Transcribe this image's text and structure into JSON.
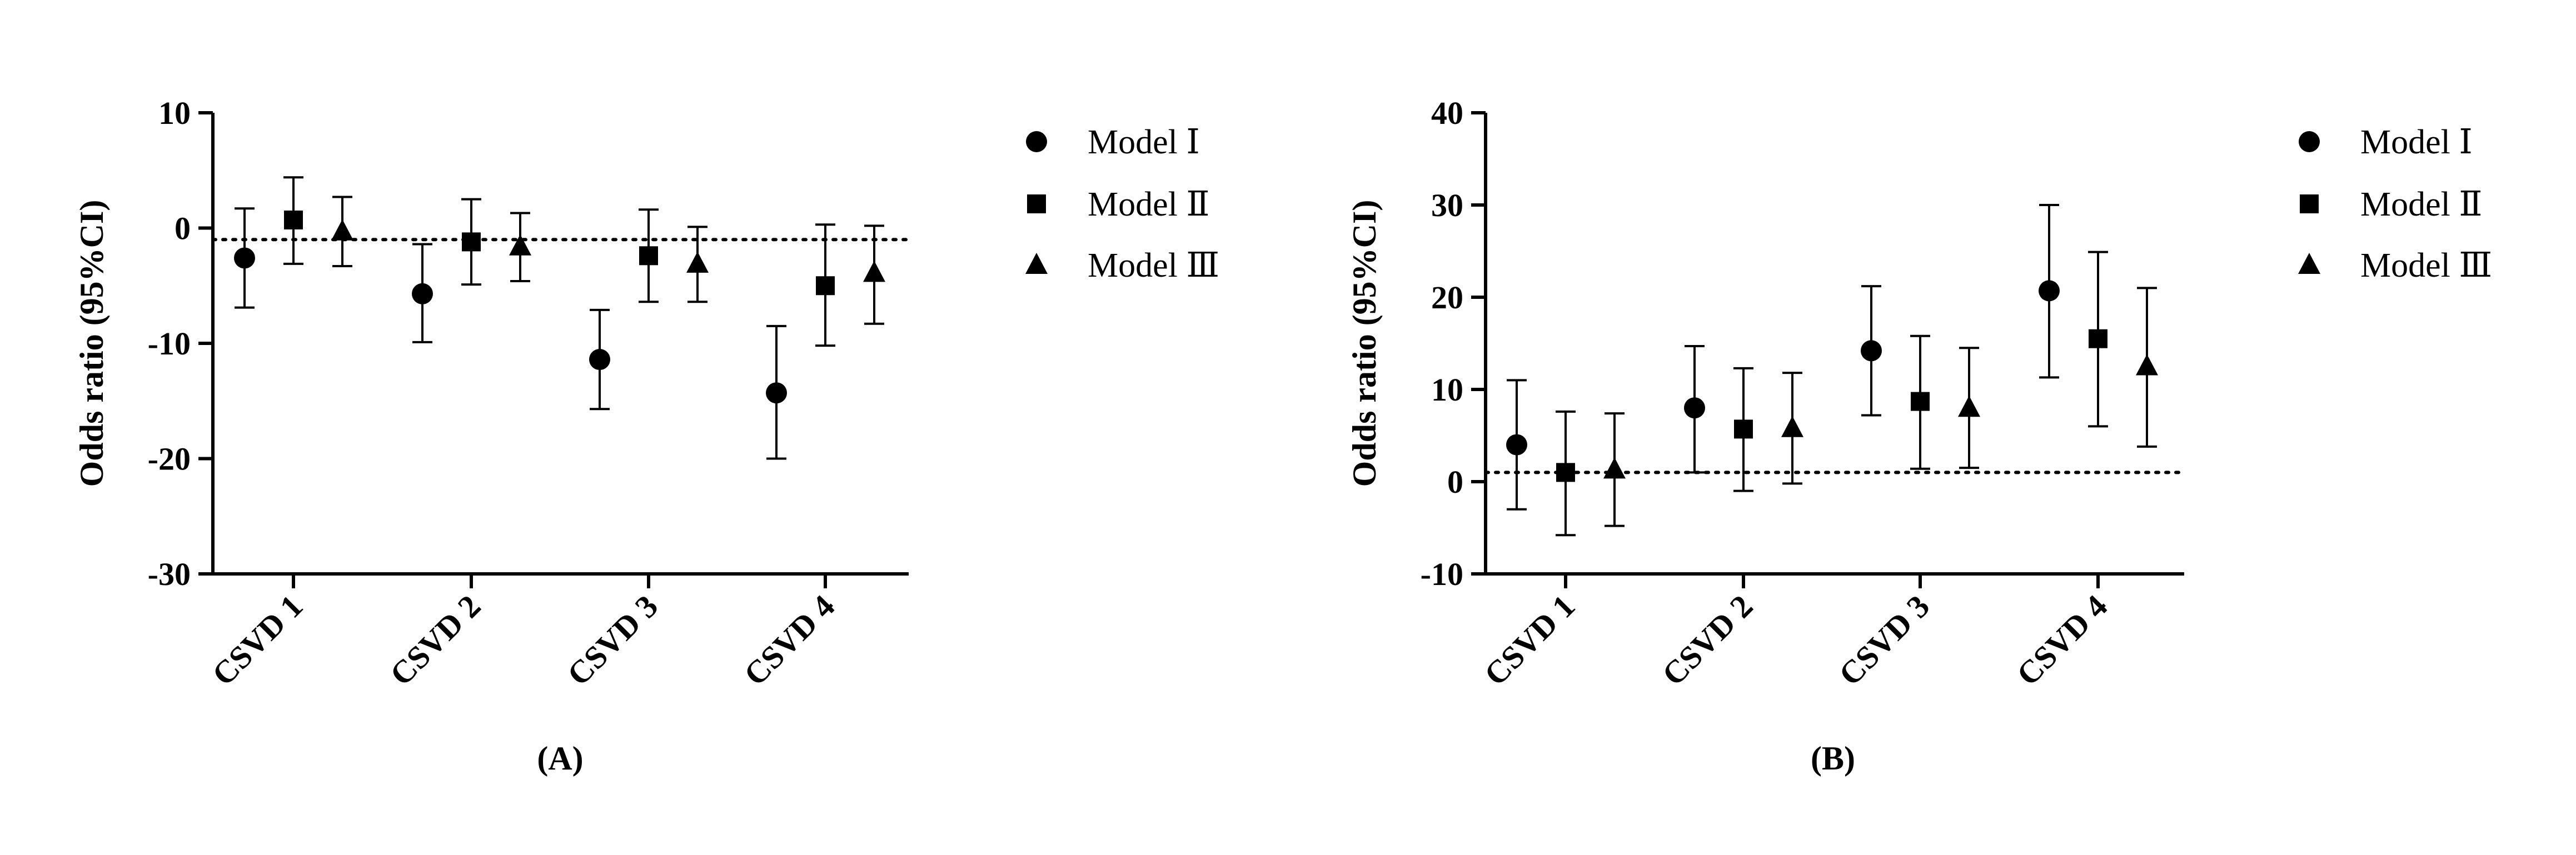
{
  "chart_data": [
    {
      "type": "scatter",
      "panel_label": "(A)",
      "ylabel": "Odds ratio (95%CI)",
      "xlabel": "",
      "ylim": [
        -30,
        10
      ],
      "yticks": [
        10,
        0,
        -10,
        -20,
        -30
      ],
      "ytick_labels": [
        "10",
        "0",
        "-10",
        "-20",
        "-30"
      ],
      "categories": [
        "CSVD 1",
        "CSVD 2",
        "CSVD 3",
        "CSVD 4"
      ],
      "reference_line": -1,
      "grid": false,
      "legend_position": "right",
      "series": [
        {
          "name": "Model Ⅰ",
          "marker": "circle",
          "values": [
            -2.6,
            -5.7,
            -11.4,
            -14.3
          ],
          "lower": [
            -6.9,
            -9.9,
            -15.7,
            -20.0
          ],
          "upper": [
            1.7,
            -1.4,
            -7.1,
            -8.5
          ]
        },
        {
          "name": "Model Ⅱ",
          "marker": "square",
          "values": [
            0.7,
            -1.2,
            -2.4,
            -5.0
          ],
          "lower": [
            -3.1,
            -4.9,
            -6.4,
            -10.2
          ],
          "upper": [
            4.4,
            2.5,
            1.6,
            0.3
          ]
        },
        {
          "name": "Model Ⅲ",
          "marker": "triangle",
          "values": [
            -0.3,
            -1.6,
            -3.1,
            -3.9
          ],
          "lower": [
            -3.3,
            -4.6,
            -6.4,
            -8.3
          ],
          "upper": [
            2.7,
            1.3,
            0.1,
            0.2
          ]
        }
      ]
    },
    {
      "type": "scatter",
      "panel_label": "(B)",
      "ylabel": "Odds ratio (95%CI)",
      "xlabel": "",
      "ylim": [
        -10,
        40
      ],
      "yticks": [
        40,
        30,
        20,
        10,
        0,
        -10
      ],
      "ytick_labels": [
        "40",
        "30",
        "20",
        "10",
        "0",
        "-10"
      ],
      "categories": [
        "CSVD 1",
        "CSVD 2",
        "CSVD 3",
        "CSVD 4"
      ],
      "reference_line": 1,
      "grid": false,
      "legend_position": "right",
      "series": [
        {
          "name": "Model Ⅰ",
          "marker": "circle",
          "values": [
            4.0,
            8.0,
            14.2,
            20.7
          ],
          "lower": [
            -3.0,
            1.0,
            7.2,
            11.3
          ],
          "upper": [
            11.0,
            14.7,
            21.2,
            30.0
          ]
        },
        {
          "name": "Model Ⅱ",
          "marker": "square",
          "values": [
            1.0,
            5.7,
            8.7,
            15.5
          ],
          "lower": [
            -5.8,
            -1.0,
            1.4,
            6.0
          ],
          "upper": [
            7.6,
            12.3,
            15.8,
            24.9
          ]
        },
        {
          "name": "Model Ⅲ",
          "marker": "triangle",
          "values": [
            1.3,
            5.8,
            8.0,
            12.5
          ],
          "lower": [
            -4.8,
            -0.2,
            1.5,
            3.8
          ],
          "upper": [
            7.4,
            11.8,
            14.5,
            21.0
          ]
        }
      ]
    }
  ]
}
